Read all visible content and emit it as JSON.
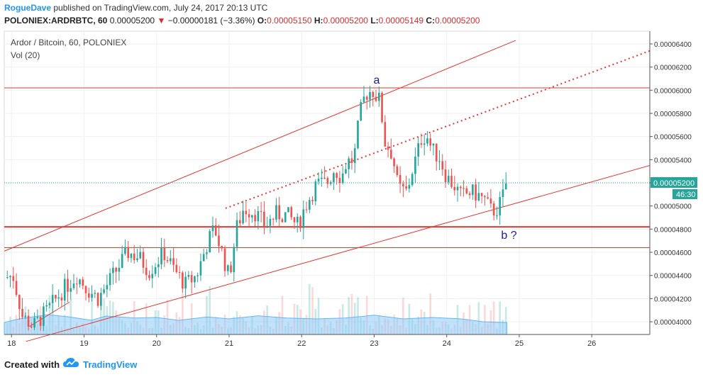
{
  "header": {
    "author": "RogueDave",
    "published_text": "published on TradingView.com, July 24, 2017 20:13 UTC",
    "symbol": "POLONIEX:ARDRBTC, 60",
    "last": "0.00005200",
    "arrow": "▼",
    "change": "−0.00000181 (−3.36%)",
    "o_label": "O:",
    "o_value": "0.00005150",
    "h_label": "H:",
    "h_value": "0.00005200",
    "l_label": "L:",
    "l_value": "0.00005149",
    "c_label": "C:",
    "c_value": "0.00005200"
  },
  "legend": {
    "title": "Ardor / Bitcoin, 60, POLONIEX",
    "volume": "Vol (20)"
  },
  "annotations": {
    "a": "a",
    "b": "b ?"
  },
  "price_badge": {
    "price": "0.00005200",
    "countdown": "46:30"
  },
  "footer": {
    "created": "Created with",
    "brand": "TradingView"
  },
  "colors": {
    "up": "#26a69a",
    "down": "#ef5350",
    "trendline": "#e53935",
    "author": "#2196f3",
    "volume_ma": "#90caf9",
    "annotation": "#1a1aaa"
  },
  "chart_data": {
    "type": "candlestick",
    "title": "Ardor / Bitcoin, 60, POLONIEX",
    "interval": "60",
    "xlim": [
      17.9,
      26.8
    ],
    "ylim": [
      3.89e-05,
      6.51e-05
    ],
    "x_ticks": [
      "18",
      "19",
      "20",
      "21",
      "22",
      "23",
      "24",
      "25",
      "26"
    ],
    "y_ticks": [
      "0.00004000",
      "0.00004200",
      "0.00004400",
      "0.00004600",
      "0.00004800",
      "0.00005000",
      "0.00005200",
      "0.00005400",
      "0.00005600",
      "0.00005800",
      "0.00006000",
      "0.00006200",
      "0.00006400"
    ],
    "close_anchors": [
      [
        17.9,
        4.38e-05
      ],
      [
        18.02,
        4.4e-05
      ],
      [
        18.15,
        4.05e-05
      ],
      [
        18.3,
        3.96e-05
      ],
      [
        18.5,
        4.1e-05
      ],
      [
        18.7,
        4.27e-05
      ],
      [
        18.9,
        4.4e-05
      ],
      [
        19.05,
        4.28e-05
      ],
      [
        19.2,
        4.2e-05
      ],
      [
        19.45,
        4.45e-05
      ],
      [
        19.6,
        4.6e-05
      ],
      [
        19.75,
        4.56e-05
      ],
      [
        19.9,
        4.44e-05
      ],
      [
        20.1,
        4.6e-05
      ],
      [
        20.25,
        4.44e-05
      ],
      [
        20.4,
        4.32e-05
      ],
      [
        20.55,
        4.4e-05
      ],
      [
        20.7,
        4.68e-05
      ],
      [
        20.8,
        4.81e-05
      ],
      [
        20.9,
        4.6e-05
      ],
      [
        21.0,
        4.38e-05
      ],
      [
        21.1,
        4.8e-05
      ],
      [
        21.2,
        4.98e-05
      ],
      [
        21.35,
        4.95e-05
      ],
      [
        21.5,
        4.83e-05
      ],
      [
        21.65,
        4.93e-05
      ],
      [
        21.8,
        4.92e-05
      ],
      [
        21.95,
        4.83e-05
      ],
      [
        22.05,
        5e-05
      ],
      [
        22.2,
        5.18e-05
      ],
      [
        22.35,
        5.2e-05
      ],
      [
        22.45,
        5.32e-05
      ],
      [
        22.55,
        5.25e-05
      ],
      [
        22.62,
        5.38e-05
      ],
      [
        22.72,
        5.4e-05
      ],
      [
        22.8,
        5.78e-05
      ],
      [
        22.88,
        5.97e-05
      ],
      [
        22.98,
        6e-05
      ],
      [
        23.08,
        5.9e-05
      ],
      [
        23.15,
        5.55e-05
      ],
      [
        23.25,
        5.45e-05
      ],
      [
        23.33,
        5.15e-05
      ],
      [
        23.45,
        5.12e-05
      ],
      [
        23.52,
        5.3e-05
      ],
      [
        23.58,
        5.42e-05
      ],
      [
        23.65,
        5.58e-05
      ],
      [
        23.72,
        5.62e-05
      ],
      [
        23.8,
        5.48e-05
      ],
      [
        23.9,
        5.42e-05
      ],
      [
        24.0,
        5.25e-05
      ],
      [
        24.1,
        5.18e-05
      ],
      [
        24.2,
        5.08e-05
      ],
      [
        24.32,
        5.12e-05
      ],
      [
        24.42,
        5.1e-05
      ],
      [
        24.52,
        5.05e-05
      ],
      [
        24.62,
        4.95e-05
      ],
      [
        24.7,
        4.98e-05
      ],
      [
        24.76,
        5.05e-05
      ],
      [
        24.82,
        5.2e-05
      ]
    ],
    "volume_ma": [
      [
        17.9,
        0.42
      ],
      [
        18.1,
        0.55
      ],
      [
        18.5,
        0.7
      ],
      [
        18.8,
        0.62
      ],
      [
        19.1,
        0.5
      ],
      [
        19.3,
        0.65
      ],
      [
        19.7,
        0.58
      ],
      [
        20.0,
        0.6
      ],
      [
        20.3,
        0.5
      ],
      [
        20.7,
        0.62
      ],
      [
        21.0,
        0.55
      ],
      [
        21.4,
        0.66
      ],
      [
        21.8,
        0.58
      ],
      [
        22.2,
        0.55
      ],
      [
        22.6,
        0.58
      ],
      [
        23.0,
        0.68
      ],
      [
        23.4,
        0.55
      ],
      [
        23.8,
        0.6
      ],
      [
        24.2,
        0.55
      ],
      [
        24.5,
        0.45
      ],
      [
        24.83,
        0.42
      ]
    ],
    "horizontal_lines": [
      6.02e-05,
      4.82e-05,
      4.64e-05,
      3.89e-05
    ],
    "trendlines": [
      {
        "style": "solid",
        "points": [
          [
            17.9,
            4.61e-05
          ],
          [
            24.95,
            6.43e-05
          ]
        ]
      },
      {
        "style": "dotted",
        "points": [
          [
            20.95,
            4.98e-05
          ],
          [
            26.8,
            6.34e-05
          ]
        ]
      },
      {
        "style": "solid",
        "points": [
          [
            18.2,
            3.83e-05
          ],
          [
            26.8,
            5.35e-05
          ]
        ]
      },
      {
        "style": "solid",
        "points": [
          [
            18.25,
            3.96e-05
          ],
          [
            18.8,
            4.17e-05
          ]
        ]
      }
    ],
    "last_price": 5.2e-05
  }
}
